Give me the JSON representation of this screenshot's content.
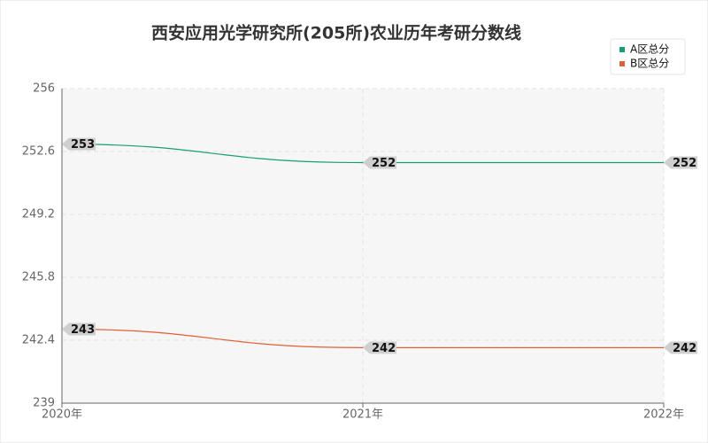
{
  "chart_data": {
    "type": "line",
    "title": "西安应用光学研究所(205所)农业历年考研分数线",
    "categories": [
      "2020年",
      "2021年",
      "2022年"
    ],
    "series": [
      {
        "name": "A区总分",
        "color": "#1a9c77",
        "values": [
          253,
          252,
          252
        ]
      },
      {
        "name": "B区总分",
        "color": "#e0603a",
        "values": [
          243,
          242,
          242
        ]
      }
    ],
    "ylim": [
      239,
      256
    ],
    "yticks": [
      239,
      242.4,
      245.8,
      249.2,
      252.6,
      256
    ],
    "grid": true,
    "legend": "top-right"
  }
}
